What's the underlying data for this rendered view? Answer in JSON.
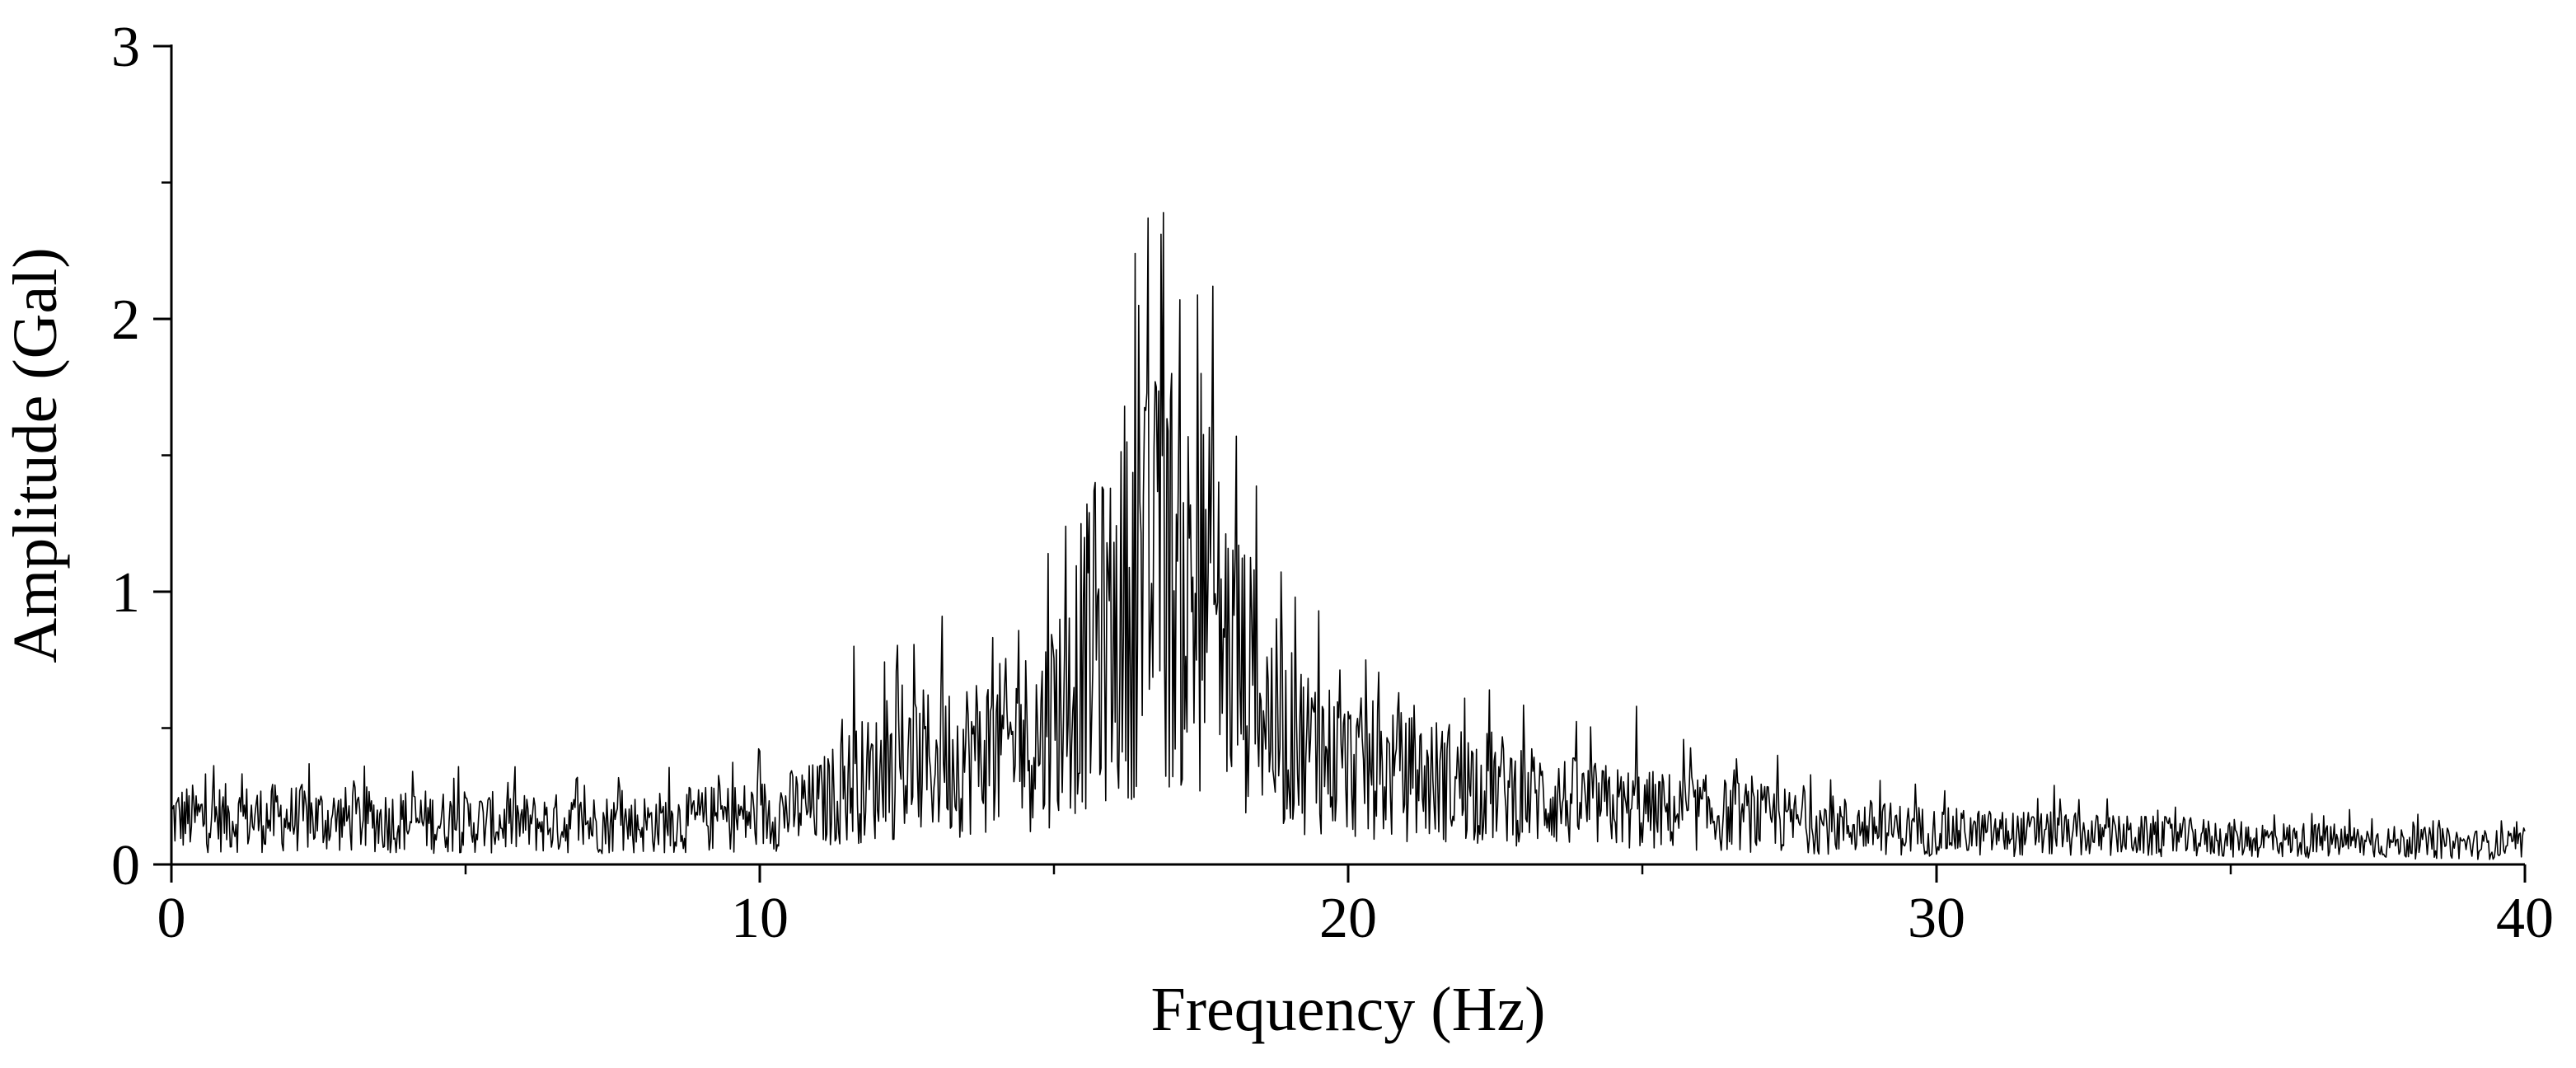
{
  "chart_data": {
    "type": "line",
    "title": "",
    "xlabel": "Frequency (Hz)",
    "ylabel": "Amplitude (Gal)",
    "xlim": [
      0,
      40
    ],
    "ylim": [
      0,
      3
    ],
    "x_ticks": [
      0,
      10,
      20,
      30,
      40
    ],
    "x_tick_labels": [
      "0",
      "10",
      "20",
      "30",
      "40"
    ],
    "y_ticks": [
      0,
      1,
      2,
      3
    ],
    "y_tick_labels": [
      "0",
      "1",
      "2",
      "3"
    ],
    "grid": false,
    "legend": "none",
    "line_color": "#000000",
    "sample_step_hz": 0.02,
    "envelope": {
      "x": [
        0,
        2,
        4,
        6,
        8,
        10,
        11,
        11.6,
        12,
        13,
        14,
        14.8,
        15.5,
        16,
        16.5,
        16.8,
        17.2,
        17.6,
        18,
        18.5,
        19,
        19.5,
        20,
        21,
        22,
        23,
        24,
        25,
        26,
        27,
        28,
        30,
        32,
        34,
        36,
        38,
        40
      ],
      "y": [
        0.17,
        0.17,
        0.16,
        0.15,
        0.15,
        0.18,
        0.22,
        0.3,
        0.32,
        0.38,
        0.42,
        0.48,
        0.75,
        0.85,
        1.0,
        1.05,
        1.0,
        0.95,
        0.78,
        0.6,
        0.45,
        0.42,
        0.36,
        0.32,
        0.3,
        0.26,
        0.22,
        0.2,
        0.19,
        0.17,
        0.15,
        0.12,
        0.11,
        0.1,
        0.09,
        0.08,
        0.07
      ]
    },
    "peaks": [
      {
        "x": 11.6,
        "y": 0.8
      },
      {
        "x": 13.1,
        "y": 0.91
      },
      {
        "x": 14.9,
        "y": 1.14
      },
      {
        "x": 15.2,
        "y": 1.24
      },
      {
        "x": 15.7,
        "y": 1.4
      },
      {
        "x": 16.2,
        "y": 1.68
      },
      {
        "x": 16.45,
        "y": 2.05
      },
      {
        "x": 16.6,
        "y": 2.37
      },
      {
        "x": 16.75,
        "y": 1.75
      },
      {
        "x": 16.85,
        "y": 2.39
      },
      {
        "x": 17.0,
        "y": 1.8
      },
      {
        "x": 17.15,
        "y": 2.07
      },
      {
        "x": 17.5,
        "y": 1.8
      },
      {
        "x": 17.7,
        "y": 2.12
      },
      {
        "x": 18.1,
        "y": 1.57
      },
      {
        "x": 18.4,
        "y": 1.08
      },
      {
        "x": 19.1,
        "y": 0.98
      },
      {
        "x": 19.5,
        "y": 0.93
      },
      {
        "x": 20.3,
        "y": 0.75
      },
      {
        "x": 22.4,
        "y": 0.64
      },
      {
        "x": 24.9,
        "y": 0.58
      },
      {
        "x": 27.3,
        "y": 0.4
      },
      {
        "x": 32.0,
        "y": 0.29
      }
    ]
  }
}
